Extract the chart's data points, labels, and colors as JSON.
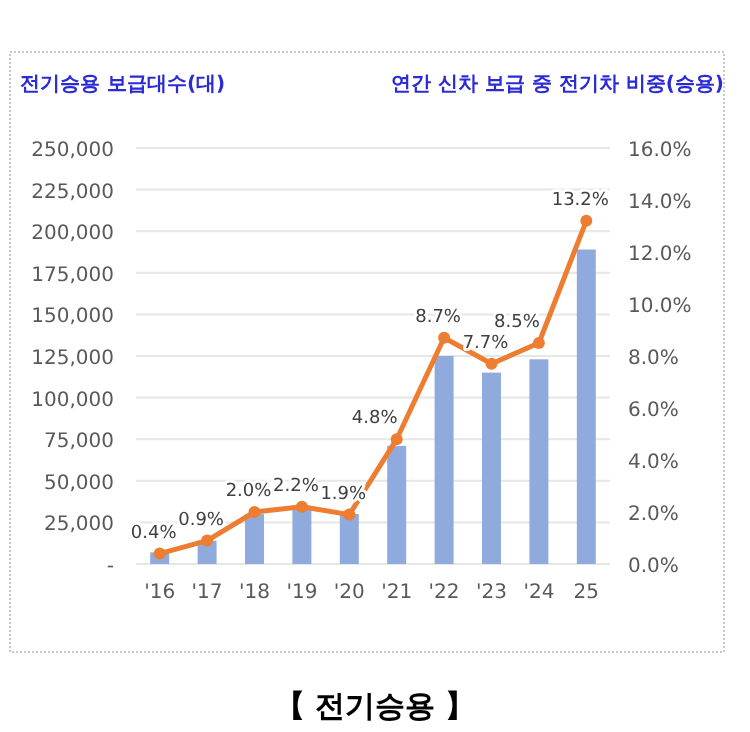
{
  "chart_data": {
    "type": "bar",
    "categories": [
      "'16",
      "'17",
      "'18",
      "'19",
      "'20",
      "'21",
      "'22",
      "'23",
      "'24",
      "25"
    ],
    "ylabel": "전기승용 보급대수(대)",
    "y2label": "연간 신차 보급 중 전기차 비중(승용)",
    "series": [
      {
        "color": "#8faadc",
        "values": [
          7000,
          14000,
          30000,
          34000,
          30000,
          71000,
          125000,
          115000,
          123000,
          189000
        ]
      },
      {
        "type": "line",
        "axis": "y2",
        "color": "#ed7d31",
        "marker": "circle",
        "values": [
          0.4,
          0.9,
          2.0,
          2.2,
          1.9,
          4.8,
          8.7,
          7.7,
          8.5,
          13.2
        ],
        "value_labels": [
          "0.4%",
          "0.9%",
          "2.0%",
          "2.2%",
          "1.9%",
          "4.8%",
          "8.7%",
          "7.7%",
          "8.5%",
          "13.2%"
        ]
      }
    ],
    "ylim": [
      0,
      250000
    ],
    "yticks": [
      {
        "value": 0,
        "label": "-"
      },
      {
        "value": 25000,
        "label": "25,000"
      },
      {
        "value": 50000,
        "label": "50,000"
      },
      {
        "value": 75000,
        "label": "75,000"
      },
      {
        "value": 100000,
        "label": "100,000"
      },
      {
        "value": 125000,
        "label": "125,000"
      },
      {
        "value": 150000,
        "label": "150,000"
      },
      {
        "value": 175000,
        "label": "175,000"
      },
      {
        "value": 200000,
        "label": "200,000"
      },
      {
        "value": 225000,
        "label": "225,000"
      },
      {
        "value": 250000,
        "label": "250,000"
      }
    ],
    "y2lim": [
      0,
      16
    ],
    "y2ticks": [
      {
        "value": 0,
        "label": "0.0%"
      },
      {
        "value": 2,
        "label": "2.0%"
      },
      {
        "value": 4,
        "label": "4.0%"
      },
      {
        "value": 6,
        "label": "6.0%"
      },
      {
        "value": 8,
        "label": "8.0%"
      },
      {
        "value": 10,
        "label": "10.0%"
      },
      {
        "value": 12,
        "label": "12.0%"
      },
      {
        "value": 14,
        "label": "14.0%"
      },
      {
        "value": 16,
        "label": "16.0%"
      }
    ],
    "grid": "y",
    "annotations": [
      "【 전기승용 】"
    ]
  }
}
